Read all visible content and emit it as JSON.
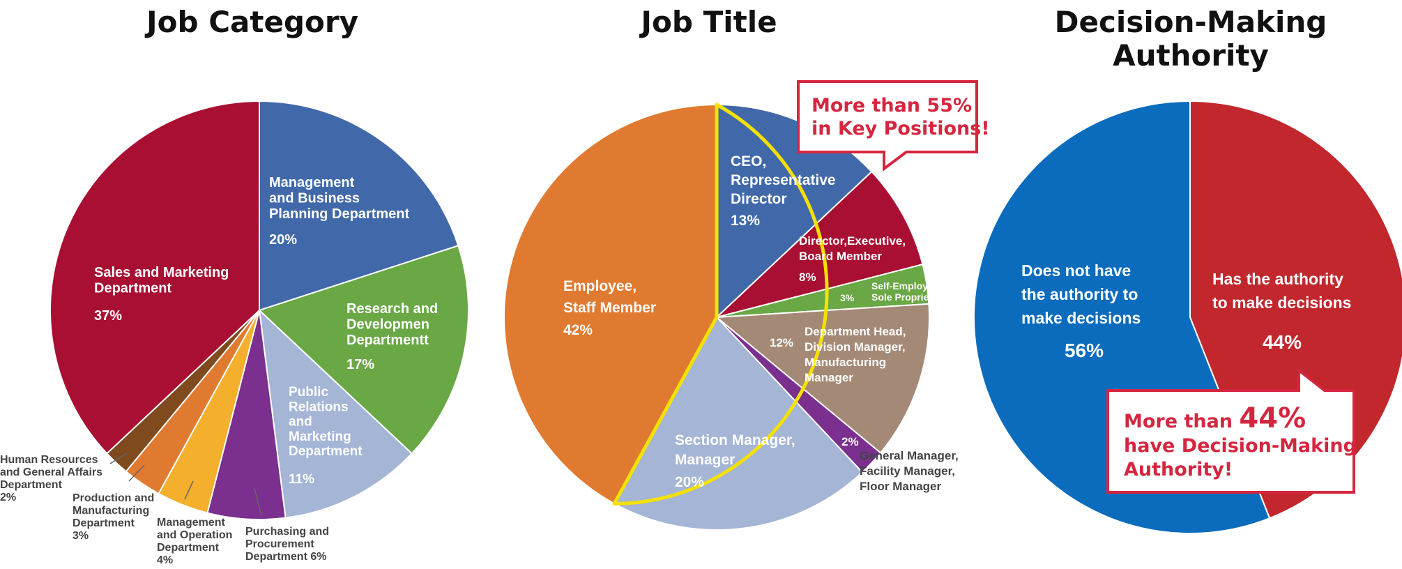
{
  "chart_data": [
    {
      "type": "pie",
      "title": "Job Category",
      "slices": [
        {
          "lines": [
            "Management",
            "and Business",
            "Planning Department"
          ],
          "pct_label": "20%",
          "value": 20,
          "color": "#4169aa"
        },
        {
          "lines": [
            "Research and",
            "Developmen",
            "Departmentt"
          ],
          "pct_label": "17%",
          "value": 17,
          "color": "#6aa745"
        },
        {
          "lines": [
            "Public",
            "Relations",
            "and",
            "Marketing",
            "Department"
          ],
          "pct_label": "11%",
          "value": 11,
          "color": "#a4b5d6"
        },
        {
          "lines": [
            "Purchasing and",
            "Procurement",
            "Department  6%"
          ],
          "pct_label": "",
          "value": 6,
          "color": "#7b2f8e"
        },
        {
          "lines": [
            "Management",
            "and Operation",
            "Department",
            "4%"
          ],
          "pct_label": "",
          "value": 4,
          "color": "#f4b02c"
        },
        {
          "lines": [
            "Production and",
            "Manufacturing",
            "Department",
            "3%"
          ],
          "pct_label": "",
          "value": 3,
          "color": "#e07a30"
        },
        {
          "lines": [
            "Human Resources",
            "and General Affairs",
            "Department",
            "2%"
          ],
          "pct_label": "",
          "value": 2,
          "color": "#7e4a1e"
        },
        {
          "lines": [
            "Sales and Marketing",
            "Department"
          ],
          "pct_label": "37%",
          "value": 37,
          "color": "#a90f32"
        }
      ]
    },
    {
      "type": "pie",
      "title": "Job Title",
      "slices": [
        {
          "lines": [
            "CEO,",
            "Representative",
            "Director"
          ],
          "pct_label": "13%",
          "value": 13,
          "color": "#4169aa"
        },
        {
          "lines": [
            "Director,Executive,",
            "Board Member"
          ],
          "pct_label": "8%",
          "value": 8,
          "color": "#a90f32"
        },
        {
          "lines": [
            "Self-Employed,",
            "Sole Proprietor"
          ],
          "pct_label": "3%",
          "value": 3,
          "color": "#6aa745"
        },
        {
          "lines": [
            "Department Head,",
            "Division Manager,",
            "Manufacturing",
            "Manager"
          ],
          "pct_label": "12%",
          "value": 12,
          "color": "#a48a76"
        },
        {
          "lines": [
            "General Manager,",
            "Facility Manager,",
            "Floor Manager"
          ],
          "pct_label": "2%",
          "value": 2,
          "color": "#7b2f8e"
        },
        {
          "lines": [
            "Section Manager,",
            "Manager"
          ],
          "pct_label": "20%",
          "value": 20,
          "color": "#a4b5d6"
        },
        {
          "lines": [
            "Employee,",
            "Staff Member"
          ],
          "pct_label": "42%",
          "value": 42,
          "color": "#e07a30"
        }
      ],
      "callout": [
        "More than 55%",
        "in Key Positions!"
      ]
    },
    {
      "type": "pie",
      "title": "Decision-Making Authority",
      "title_lines": [
        "Decision-Making",
        "Authority"
      ],
      "slices": [
        {
          "lines": [
            "Has the authority",
            "to make decisions"
          ],
          "pct_label": "44%",
          "value": 44,
          "color": "#c1272d"
        },
        {
          "lines": [
            "Does not have",
            "the authority to",
            "make decisions"
          ],
          "pct_label": "56%",
          "value": 56,
          "color": "#0b6cbd"
        }
      ],
      "callout": {
        "prefix": "More than",
        "big": "44%",
        "rest": [
          "have Decision-Making",
          "Authority!"
        ]
      }
    }
  ]
}
